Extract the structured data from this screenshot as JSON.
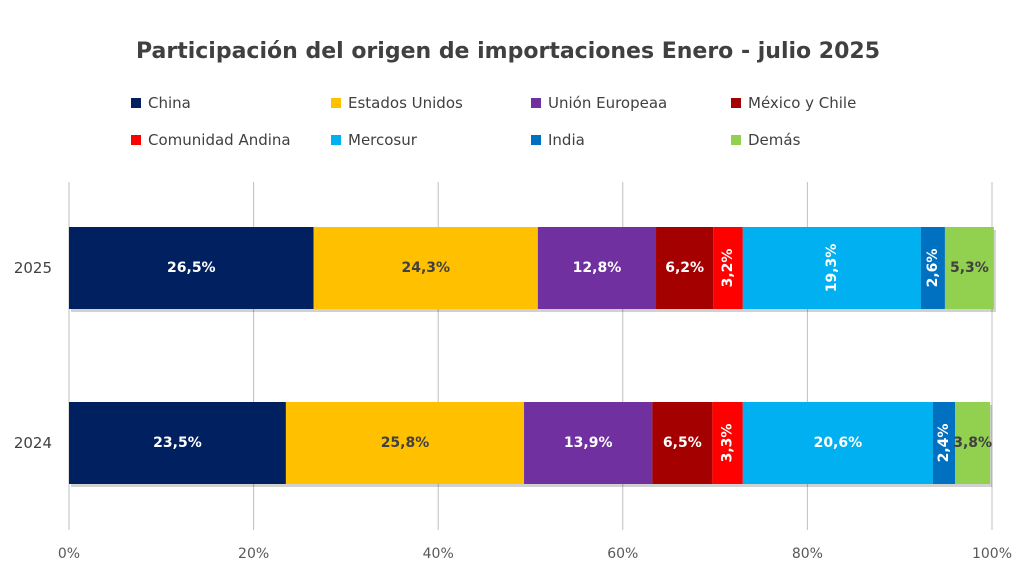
{
  "chart_data": {
    "type": "bar",
    "orientation": "horizontal",
    "stacked": "percent",
    "title": "Participación del origen de importaciones Enero - julio 2025",
    "xlabel": "",
    "ylabel": "",
    "categories": [
      "2025",
      "2024"
    ],
    "xlim": [
      0,
      100
    ],
    "x_ticks": [
      "0%",
      "20%",
      "40%",
      "60%",
      "80%",
      "100%"
    ],
    "grid": "vertical",
    "legend_position": "top",
    "series": [
      {
        "name": "China",
        "color": "#002060",
        "label_color": "#ffffff",
        "values": [
          26.5,
          23.5
        ],
        "labels": [
          "26,5%",
          "23,5%"
        ],
        "label_rotation": [
          0,
          0
        ]
      },
      {
        "name": "Estados Unidos",
        "color": "#FFC000",
        "label_color": "#404040",
        "values": [
          24.3,
          25.8
        ],
        "labels": [
          "24,3%",
          "25,8%"
        ],
        "label_rotation": [
          0,
          0
        ]
      },
      {
        "name": "Unión Europeaa",
        "color": "#7030A0",
        "label_color": "#ffffff",
        "values": [
          12.8,
          13.9
        ],
        "labels": [
          "12,8%",
          "13,9%"
        ],
        "label_rotation": [
          0,
          0
        ]
      },
      {
        "name": "México y Chile",
        "color": "#A50000",
        "label_color": "#ffffff",
        "values": [
          6.2,
          6.5
        ],
        "labels": [
          "6,2%",
          "6,5%"
        ],
        "label_rotation": [
          0,
          0
        ]
      },
      {
        "name": " Comunidad Andina",
        "color": "#FF0000",
        "label_color": "#ffffff",
        "values": [
          3.2,
          3.3
        ],
        "labels": [
          "3,2%",
          "3,3%"
        ],
        "label_rotation": [
          -90,
          -90
        ]
      },
      {
        "name": "Mercosur",
        "color": "#00B0F0",
        "label_color": "#ffffff",
        "values": [
          19.3,
          20.6
        ],
        "labels": [
          "19,3%",
          "20,6%"
        ],
        "label_rotation": [
          -90,
          0
        ]
      },
      {
        "name": "India",
        "color": "#0070C0",
        "label_color": "#ffffff",
        "values": [
          2.6,
          2.4
        ],
        "labels": [
          "2,6%",
          "2,4%"
        ],
        "label_rotation": [
          -90,
          -90
        ]
      },
      {
        "name": "Demás",
        "color": "#92D050",
        "label_color": "#404040",
        "values": [
          5.3,
          3.8
        ],
        "labels": [
          "5,3%",
          "3,8%"
        ],
        "label_rotation": [
          0,
          0
        ]
      }
    ]
  }
}
